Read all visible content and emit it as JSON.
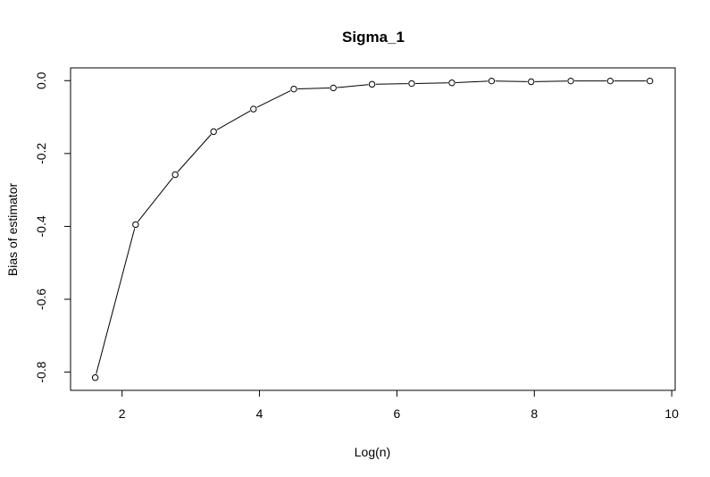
{
  "chart_data": {
    "type": "line",
    "title": "Sigma_1",
    "xlabel": "Log(n)",
    "ylabel": "Bias of estimator",
    "xlim": [
      1.25,
      10.05
    ],
    "ylim": [
      -0.85,
      0.035
    ],
    "xticks": [
      2,
      4,
      6,
      8,
      10
    ],
    "yticks": [
      -0.8,
      -0.6,
      -0.4,
      -0.2,
      0.0
    ],
    "xtick_labels": [
      "2",
      "4",
      "6",
      "8",
      "10"
    ],
    "ytick_labels": [
      "-0.8",
      "-0.6",
      "-0.4",
      "-0.2",
      "0.0"
    ],
    "grid": false,
    "marker": "open-circle",
    "series": [
      {
        "x": [
          1.609,
          2.197,
          2.773,
          3.332,
          3.912,
          4.5,
          5.075,
          5.638,
          6.215,
          6.8,
          7.378,
          7.954,
          8.53,
          9.106,
          9.682
        ],
        "y": [
          -0.815,
          -0.395,
          -0.258,
          -0.14,
          -0.078,
          -0.023,
          -0.02,
          -0.01,
          -0.008,
          -0.006,
          -0.001,
          -0.003,
          -0.001,
          -0.001,
          -0.001
        ]
      }
    ]
  }
}
